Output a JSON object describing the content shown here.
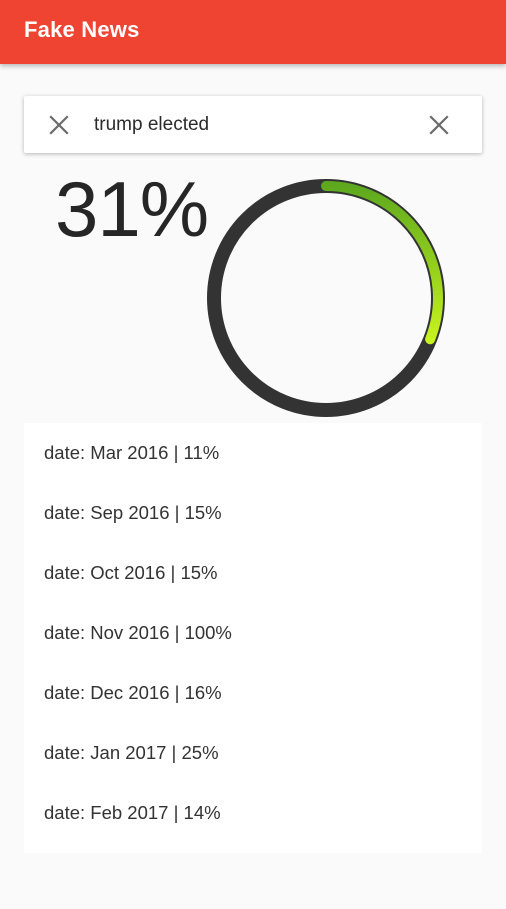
{
  "app": {
    "title": "Fake News",
    "accent_color": "#f04433"
  },
  "search": {
    "value": "trump elected",
    "left_icon": "close-icon",
    "right_icon": "close-icon"
  },
  "gauge": {
    "label": "31%",
    "value_fraction": 0.31,
    "track_color": "#333333",
    "fill_gradient": [
      "#5da81e",
      "#c6f21e"
    ]
  },
  "results": [
    {
      "text": "date: Mar 2016 | 11%"
    },
    {
      "text": "date: Sep 2016 | 15%"
    },
    {
      "text": "date: Oct 2016 | 15%"
    },
    {
      "text": "date: Nov 2016 | 100%"
    },
    {
      "text": "date: Dec 2016 | 16%"
    },
    {
      "text": "date: Jan 2017 | 25%"
    },
    {
      "text": "date: Feb 2017 | 14%"
    }
  ]
}
